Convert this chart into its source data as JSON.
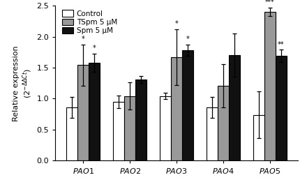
{
  "groups": [
    "PAO1",
    "PAO2",
    "PAO3",
    "PAO4",
    "PAO5"
  ],
  "series": [
    "Control",
    "TSpm 5 μM",
    "Spm 5 μM"
  ],
  "bar_colors": [
    "white",
    "#999999",
    "#111111"
  ],
  "bar_edgecolor": "black",
  "values": [
    [
      0.86,
      1.54,
      1.58
    ],
    [
      0.95,
      1.04,
      1.31
    ],
    [
      1.04,
      1.67,
      1.78
    ],
    [
      0.86,
      1.21,
      1.7
    ],
    [
      0.74,
      2.4,
      1.69
    ]
  ],
  "errors": [
    [
      0.17,
      0.33,
      0.15
    ],
    [
      0.1,
      0.22,
      0.06
    ],
    [
      0.05,
      0.45,
      0.09
    ],
    [
      0.17,
      0.35,
      0.35
    ],
    [
      0.38,
      0.07,
      0.1
    ]
  ],
  "asterisks": [
    [
      "",
      "*",
      "*"
    ],
    [
      "",
      "",
      ""
    ],
    [
      "",
      "*",
      "*"
    ],
    [
      "",
      "",
      ""
    ],
    [
      "",
      "***",
      "**"
    ]
  ],
  "ylim": [
    0.0,
    2.5
  ],
  "yticks": [
    0.0,
    0.5,
    1.0,
    1.5,
    2.0,
    2.5
  ],
  "bar_width": 0.24,
  "figsize": [
    4.4,
    2.71
  ],
  "dpi": 100
}
